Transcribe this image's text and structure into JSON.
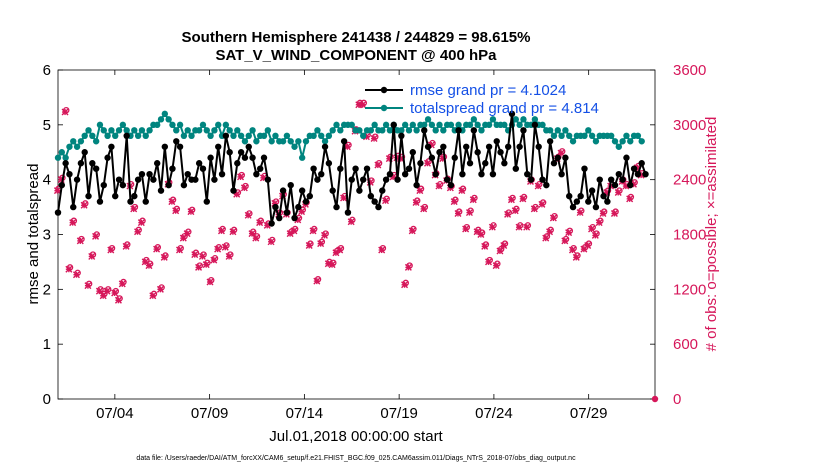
{
  "chart_data": {
    "type": "line",
    "title_line1": "Southern Hemisphere 241438 / 244829 = 98.615%",
    "title_line2": "SAT_V_WIND_COMPONENT @ 400 hPa",
    "xlabel": "Jul.01,2018 00:00:00 start",
    "ylabel_left": "rmse and totalspread",
    "ylabel_right": "# of obs: o=possible; ×=assimilated",
    "xlim": [
      1,
      32.5
    ],
    "ylim_left": [
      0,
      6
    ],
    "ylim_right": [
      0,
      3600
    ],
    "x_ticks": [
      {
        "value": 4,
        "label": "07/04"
      },
      {
        "value": 9,
        "label": "07/09"
      },
      {
        "value": 14,
        "label": "07/14"
      },
      {
        "value": 19,
        "label": "07/19"
      },
      {
        "value": 24,
        "label": "07/24"
      },
      {
        "value": 29,
        "label": "07/29"
      }
    ],
    "y_left_ticks": [
      "0",
      "1",
      "2",
      "3",
      "4",
      "5",
      "6"
    ],
    "y_right_ticks": [
      "0",
      "600",
      "1200",
      "1800",
      "2400",
      "3000",
      "3600"
    ],
    "legend": [
      {
        "label": "rmse grand pr = 4.1024",
        "color": "#000000"
      },
      {
        "label": "totalspread grand pr = 4.814",
        "color": "#00857f"
      }
    ],
    "colors": {
      "rmse": "#000000",
      "spread": "#00857f",
      "obs": "#d6175a",
      "legend_text": "#1450e6"
    },
    "series": [
      {
        "name": "rmse",
        "values": [
          3.4,
          3.9,
          4.3,
          4.1,
          3.5,
          4.0,
          4.3,
          4.5,
          3.7,
          4.3,
          4.2,
          3.6,
          3.9,
          4.4,
          4.6,
          3.7,
          4.0,
          3.9,
          4.8,
          3.6,
          3.7,
          4.0,
          4.1,
          3.6,
          4.1,
          4.0,
          4.3,
          3.8,
          4.6,
          3.9,
          4.2,
          4.7,
          4.6,
          3.9,
          4.1,
          4.0,
          4.0,
          4.3,
          4.2,
          3.6,
          4.4,
          4.0,
          4.6,
          4.1,
          4.8,
          4.5,
          3.8,
          4.3,
          4.5,
          4.4,
          4.6,
          4.4,
          4.1,
          4.2,
          4.4,
          4.0,
          3.2,
          3.5,
          3.3,
          3.8,
          3.4,
          3.9,
          3.3,
          3.5,
          3.8,
          3.6,
          3.7,
          4.2,
          4.0,
          4.1,
          4.6,
          4.3,
          3.8,
          3.5,
          4.2,
          4.7,
          3.4,
          4.0,
          4.2,
          3.8,
          4.0,
          4.2,
          3.7,
          3.6,
          3.5,
          3.8,
          4.0,
          4.1,
          5.0,
          4.0,
          4.8,
          4.1,
          4.2,
          4.5,
          3.9,
          4.3,
          4.9,
          4.6,
          4.4,
          4.1,
          4.5,
          4.6,
          4.0,
          3.9,
          4.4,
          4.9,
          4.1,
          4.6,
          4.3,
          4.9,
          4.5,
          4.1,
          4.3,
          4.6,
          4.1,
          4.7,
          4.5,
          4.3,
          4.6,
          5.2,
          4.2,
          4.6,
          4.9,
          4.1,
          4.0,
          5.0,
          4.6,
          4.0,
          3.9,
          4.7,
          4.3,
          4.4,
          4.1,
          4.4,
          3.7,
          3.5,
          3.6,
          3.7,
          4.2,
          3.6,
          3.8,
          3.5,
          4.0,
          3.7,
          3.6,
          4.0,
          3.9,
          4.1,
          4.0,
          4.4,
          3.9,
          4.2,
          4.1,
          4.3,
          4.1
        ]
      },
      {
        "name": "totalspread",
        "values": [
          4.4,
          4.5,
          4.4,
          4.6,
          4.7,
          4.6,
          4.7,
          4.8,
          4.9,
          4.8,
          4.7,
          5.0,
          4.9,
          4.8,
          4.9,
          4.8,
          4.9,
          5.0,
          4.9,
          4.8,
          4.9,
          4.8,
          4.9,
          4.8,
          4.9,
          5.0,
          5.0,
          5.1,
          5.2,
          5.1,
          5.0,
          4.9,
          5.0,
          4.8,
          4.9,
          4.8,
          4.9,
          4.9,
          5.0,
          4.9,
          4.8,
          4.9,
          5.0,
          4.8,
          5.0,
          4.9,
          4.8,
          4.9,
          4.8,
          4.7,
          4.8,
          4.9,
          4.7,
          4.8,
          4.8,
          4.9,
          4.7,
          4.8,
          4.7,
          4.7,
          4.8,
          4.7,
          4.6,
          4.7,
          4.4,
          4.7,
          4.8,
          4.8,
          4.9,
          4.8,
          4.7,
          4.8,
          4.9,
          5.0,
          4.9,
          5.0,
          5.0,
          5.0,
          4.9,
          4.9,
          4.8,
          4.9,
          4.9,
          5.0,
          4.9,
          4.9,
          5.0,
          4.9,
          5.0,
          4.9,
          4.9,
          5.0,
          4.9,
          5.0,
          4.9,
          5.0,
          5.0,
          5.1,
          5.0,
          4.9,
          5.0,
          4.9,
          5.0,
          5.0,
          4.9,
          5.0,
          4.9,
          5.0,
          5.0,
          5.1,
          5.0,
          4.9,
          5.0,
          5.0,
          5.1,
          5.0,
          5.0,
          5.0,
          4.9,
          5.0,
          5.1,
          5.0,
          5.1,
          5.0,
          5.0,
          5.1,
          5.0,
          5.0,
          4.9,
          4.9,
          4.8,
          4.9,
          4.8,
          4.9,
          4.8,
          4.7,
          4.8,
          4.8,
          4.8,
          4.9,
          4.8,
          4.7,
          4.8,
          4.8,
          4.8,
          4.8,
          4.7,
          4.6,
          4.7,
          4.8,
          4.7,
          4.8,
          4.8,
          4.7
        ]
      },
      {
        "name": "obs_possible",
        "values": [
          2300,
          2420,
          3160,
          1440,
          1950,
          1380,
          1750,
          2140,
          1260,
          1580,
          1800,
          1200,
          1150,
          1200,
          1650,
          1180,
          1100,
          1280,
          1690,
          2350,
          2100,
          1850,
          1950,
          1520,
          1480,
          1150,
          1660,
          1220,
          1570,
          2370,
          2180,
          2080,
          1650,
          1780,
          1830,
          2070,
          1600,
          1460,
          1580,
          1490,
          1300,
          1540,
          1660,
          1860,
          1680,
          1580,
          1850,
          2260,
          2450,
          2330,
          2030,
          1830,
          1780,
          1950,
          2440,
          1920,
          1740,
          2160,
          2040,
          2240,
          2040,
          1830,
          1860,
          1980,
          2070,
          2150,
          1700,
          1860,
          1310,
          1720,
          1810,
          1500,
          1490,
          1620,
          1650,
          2220,
          2780,
          1960,
          2950,
          3240,
          3240,
          2890,
          2390,
          2870,
          2580,
          1650,
          2190,
          2650,
          2450,
          2660,
          2650,
          1270,
          1460,
          1860,
          2170,
          2300,
          2100,
          2600,
          2800,
          2470,
          2350,
          2650,
          2410,
          2330,
          2180,
          2050,
          2300,
          1880,
          2060,
          2200,
          1850,
          1820,
          1690,
          1520,
          1900,
          1480,
          1640,
          1700,
          2040,
          2200,
          2080,
          1900,
          2210,
          1900,
          2400,
          2100,
          2350,
          2150,
          1780,
          1850,
          2000,
          2650,
          2710,
          1750,
          1840,
          1650,
          1570,
          2060,
          1660,
          1700,
          1880,
          1810,
          1950,
          2050,
          2280,
          2350,
          2050,
          2280,
          2400,
          2350,
          2210,
          2370,
          2550,
          2470
        ]
      },
      {
        "name": "obs_assimilated",
        "values": [
          2280,
          2400,
          3140,
          1420,
          1930,
          1360,
          1730,
          2120,
          1240,
          1560,
          1780,
          1180,
          1130,
          1180,
          1630,
          1160,
          1080,
          1260,
          1670,
          2330,
          2080,
          1830,
          1930,
          1500,
          1460,
          1130,
          1640,
          1200,
          1550,
          2350,
          2160,
          2060,
          1630,
          1760,
          1810,
          2050,
          1580,
          1440,
          1560,
          1470,
          1280,
          1520,
          1640,
          1840,
          1660,
          1560,
          1830,
          2240,
          2430,
          2310,
          2010,
          1810,
          1760,
          1930,
          2420,
          1900,
          1720,
          2140,
          2020,
          2220,
          2020,
          1810,
          1840,
          1960,
          2050,
          2130,
          1680,
          1840,
          1290,
          1700,
          1790,
          1480,
          1470,
          1600,
          1630,
          2200,
          2760,
          1940,
          2930,
          3220,
          3220,
          2870,
          2370,
          2850,
          2560,
          1630,
          2170,
          2630,
          2430,
          2640,
          2630,
          1250,
          1440,
          1840,
          2150,
          2280,
          2080,
          2580,
          2780,
          2450,
          2330,
          2630,
          2390,
          2310,
          2160,
          2030,
          2280,
          1860,
          2040,
          2180,
          1830,
          1800,
          1670,
          1500,
          1880,
          1460,
          1620,
          1680,
          2020,
          2180,
          2060,
          1880,
          2190,
          1880,
          2380,
          2080,
          2330,
          2130,
          1760,
          1830,
          1980,
          2630,
          2690,
          1730,
          1820,
          1630,
          1550,
          2040,
          1640,
          1680,
          1860,
          1790,
          1930,
          2030,
          2260,
          2330,
          2030,
          2260,
          2380,
          2330,
          2190,
          2350,
          2530,
          2450
        ]
      }
    ],
    "footnote": "data file: /Users/raeder/DAI/ATM_forcXX/CAM6_setup/f.e21.FHIST_BGC.f09_025.CAM6assim.011/Diags_NTrS_2018-07/obs_diag_output.nc"
  }
}
